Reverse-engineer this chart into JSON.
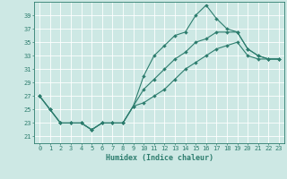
{
  "xlabel": "Humidex (Indice chaleur)",
  "bg_color": "#cde8e4",
  "grid_color": "#b0d8d4",
  "line_color": "#2d7d6e",
  "xlim": [
    -0.5,
    23.5
  ],
  "ylim": [
    20.0,
    41.0
  ],
  "yticks": [
    21,
    23,
    25,
    27,
    29,
    31,
    33,
    35,
    37,
    39
  ],
  "xticks": [
    0,
    1,
    2,
    3,
    4,
    5,
    6,
    7,
    8,
    9,
    10,
    11,
    12,
    13,
    14,
    15,
    16,
    17,
    18,
    19,
    20,
    21,
    22,
    23
  ],
  "line1_x": [
    0,
    1,
    2,
    3,
    4,
    5,
    6,
    7,
    8,
    9,
    10,
    11,
    12,
    13,
    14,
    15,
    16,
    17,
    18,
    19,
    20,
    21,
    22,
    23
  ],
  "line1_y": [
    27,
    25,
    23,
    23,
    23,
    22,
    23,
    23,
    23,
    25.5,
    30,
    33,
    34.5,
    36,
    36.5,
    39,
    40.5,
    38.5,
    37,
    36.5,
    34,
    33,
    32.5,
    32.5
  ],
  "line2_x": [
    0,
    1,
    2,
    3,
    4,
    5,
    6,
    7,
    8,
    9,
    10,
    11,
    12,
    13,
    14,
    15,
    16,
    17,
    18,
    19,
    20,
    21,
    22,
    23
  ],
  "line2_y": [
    27,
    25,
    23,
    23,
    23,
    22,
    23,
    23,
    23,
    25.5,
    28,
    29.5,
    31,
    32.5,
    33.5,
    35,
    35.5,
    36.5,
    36.5,
    36.5,
    34,
    33,
    32.5,
    32.5
  ],
  "line3_x": [
    0,
    1,
    2,
    3,
    4,
    5,
    6,
    7,
    8,
    9,
    10,
    11,
    12,
    13,
    14,
    15,
    16,
    17,
    18,
    19,
    20,
    21,
    22,
    23
  ],
  "line3_y": [
    27,
    25,
    23,
    23,
    23,
    22,
    23,
    23,
    23,
    25.5,
    26,
    27,
    28,
    29.5,
    31,
    32,
    33,
    34,
    34.5,
    35,
    33,
    32.5,
    32.5,
    32.5
  ],
  "marker_size": 2.0,
  "linewidth": 0.8,
  "tick_fontsize": 5.0,
  "xlabel_fontsize": 6.0
}
